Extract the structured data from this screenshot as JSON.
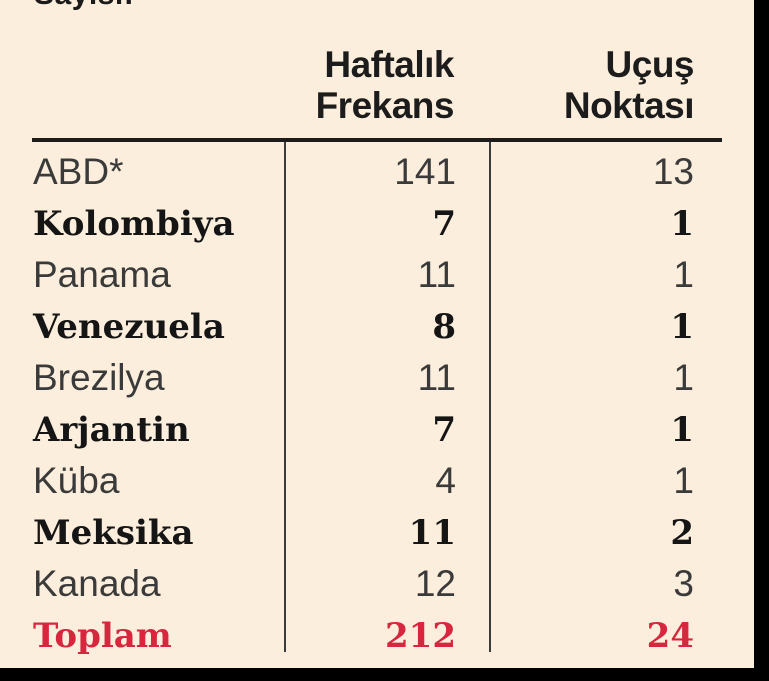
{
  "partial_title": "Sayısı:",
  "headers": {
    "frequency": [
      "Haftalık",
      "Frekans"
    ],
    "destinations": [
      "Uçuş",
      "Noktası"
    ]
  },
  "rows": [
    {
      "country": "ABD*",
      "frequency": "141",
      "destinations": "13",
      "style": "light"
    },
    {
      "country": "Kolombiya",
      "frequency": "7",
      "destinations": "1",
      "style": "bold"
    },
    {
      "country": "Panama",
      "frequency": "11",
      "destinations": "1",
      "style": "light"
    },
    {
      "country": "Venezuela",
      "frequency": "8",
      "destinations": "1",
      "style": "bold"
    },
    {
      "country": "Brezilya",
      "frequency": "11",
      "destinations": "1",
      "style": "light"
    },
    {
      "country": "Arjantin",
      "frequency": "7",
      "destinations": "1",
      "style": "bold"
    },
    {
      "country": "Küba",
      "frequency": "4",
      "destinations": "1",
      "style": "light"
    },
    {
      "country": "Meksika",
      "frequency": "11",
      "destinations": "2",
      "style": "bold"
    },
    {
      "country": "Kanada",
      "frequency": "12",
      "destinations": "3",
      "style": "light"
    }
  ],
  "total": {
    "label": "Toplam",
    "frequency": "212",
    "destinations": "24"
  },
  "colors": {
    "background": "#FCEEDC",
    "text": "#1c1c1c",
    "total": "#D7263D",
    "frame": "#000000"
  }
}
